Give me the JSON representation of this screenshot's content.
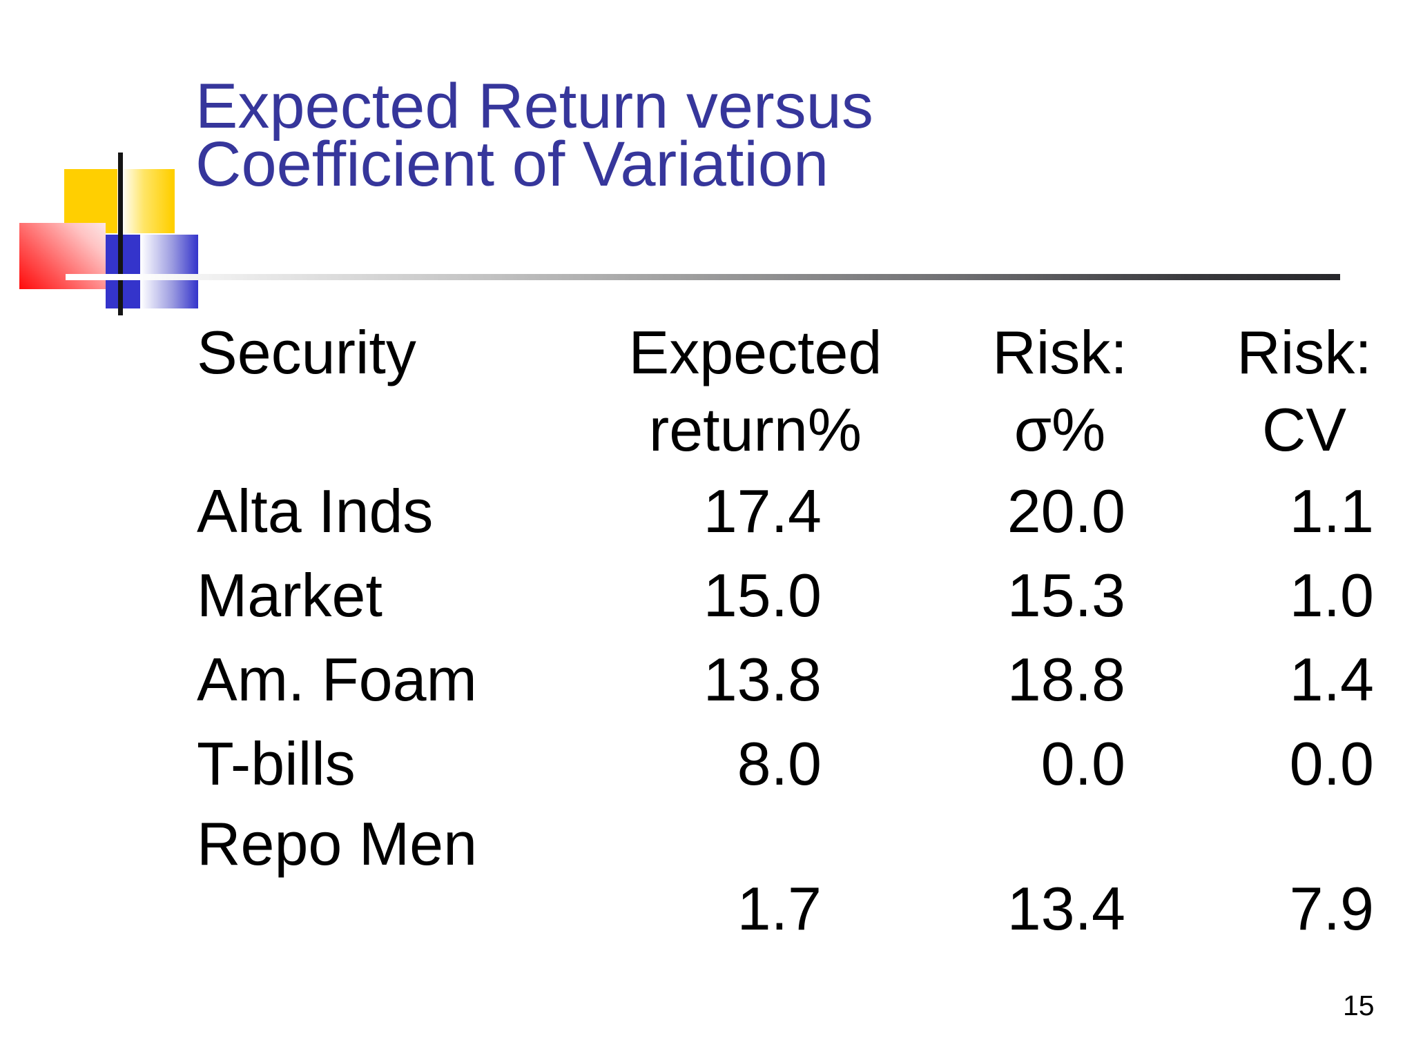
{
  "slide": {
    "title": {
      "line1": "Expected Return versus",
      "line2": "Coefficient of Variation"
    },
    "page_number": "15"
  },
  "table": {
    "headers": {
      "security": "Security",
      "expected_return": {
        "line1": "Expected",
        "line2": "return%"
      },
      "risk_sigma": {
        "line1": "Risk:",
        "line2": "σ%"
      },
      "risk_cv": {
        "line1": "Risk:",
        "line2": "CV"
      }
    },
    "rows": [
      {
        "security": "Alta Inds",
        "expected_return": "17.4",
        "risk_sigma": "20.0",
        "risk_cv": "1.1"
      },
      {
        "security": "Market",
        "expected_return": "15.0",
        "risk_sigma": "15.3",
        "risk_cv": "1.0"
      },
      {
        "security": "Am. Foam",
        "expected_return": "13.8",
        "risk_sigma": "18.8",
        "risk_cv": "1.4"
      },
      {
        "security": "T-bills",
        "expected_return": "8.0",
        "risk_sigma": "0.0",
        "risk_cv": "0.0"
      },
      {
        "security": "Repo Men",
        "expected_return": "1.7",
        "risk_sigma": "13.4",
        "risk_cv": "7.9"
      }
    ]
  },
  "colors": {
    "title_text": "#36369B",
    "body_text": "#000000",
    "logo_yellow": "#FFCF01",
    "logo_blue": "#3434CB",
    "logo_red": "#FF0A0A",
    "divider_dark_end": "#27272B"
  }
}
